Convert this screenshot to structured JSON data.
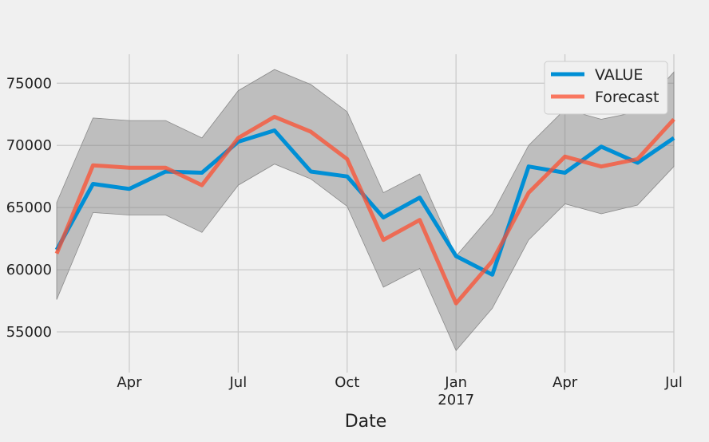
{
  "chart_data": {
    "type": "line",
    "title": "",
    "xlabel": "Date",
    "ylabel": "",
    "x": [
      "2016-02",
      "2016-03",
      "2016-04",
      "2016-05",
      "2016-06",
      "2016-07",
      "2016-08",
      "2016-09",
      "2016-10",
      "2016-11",
      "2016-12",
      "2017-01",
      "2017-02",
      "2017-03",
      "2017-04",
      "2017-05",
      "2017-06",
      "2017-07"
    ],
    "series": [
      {
        "name": "VALUE",
        "color": "#008fd5",
        "values": [
          61600,
          66900,
          66500,
          67900,
          67800,
          70300,
          71200,
          67900,
          67500,
          64200,
          65800,
          61100,
          59600,
          68300,
          67800,
          69900,
          68600,
          70600
        ]
      },
      {
        "name": "Forecast",
        "color": "#fc4f30",
        "values": [
          61300,
          68400,
          68200,
          68200,
          66800,
          70600,
          72300,
          71100,
          68900,
          62400,
          64000,
          57300,
          60700,
          66200,
          69100,
          68300,
          68900,
          72100
        ]
      }
    ],
    "confidence_band": {
      "color": "#808080",
      "lower": [
        57600,
        64600,
        64400,
        64400,
        63000,
        66800,
        68500,
        67300,
        65100,
        58600,
        60100,
        53500,
        56900,
        62400,
        65300,
        64500,
        65200,
        68300
      ],
      "upper": [
        65400,
        72200,
        72000,
        72000,
        70600,
        74400,
        76100,
        74900,
        72700,
        66200,
        67700,
        61100,
        64500,
        70000,
        72900,
        72100,
        72700,
        75900
      ]
    },
    "ylim": [
      52500,
      77200
    ],
    "y_ticks": [
      55000,
      60000,
      65000,
      70000,
      75000
    ],
    "x_ticks": [
      {
        "x": "2016-04",
        "label": "Apr",
        "sub": ""
      },
      {
        "x": "2016-07",
        "label": "Jul",
        "sub": ""
      },
      {
        "x": "2016-10",
        "label": "Oct",
        "sub": ""
      },
      {
        "x": "2017-01",
        "label": "Jan",
        "sub": "2017"
      },
      {
        "x": "2017-04",
        "label": "Apr",
        "sub": ""
      },
      {
        "x": "2017-07",
        "label": "Jul",
        "sub": ""
      }
    ],
    "grid": true,
    "legend_position": "top-right"
  }
}
